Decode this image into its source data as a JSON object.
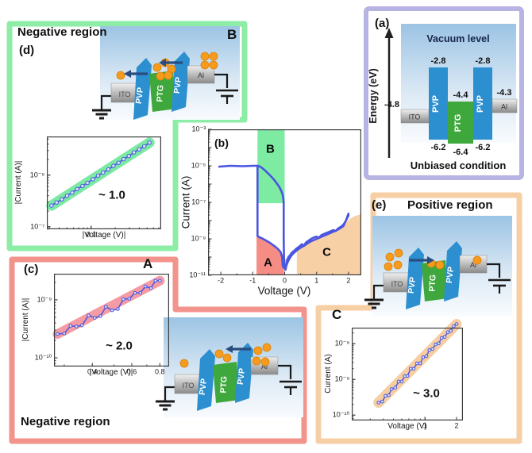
{
  "figure": {
    "layers": [
      "ITO",
      "PVP",
      "PTG",
      "PVP",
      "Al"
    ],
    "panels": {
      "a": {
        "label": "(a)",
        "vacuum_label": "Vacuum level",
        "energy_axis": "Energy (eV)",
        "caption": "Unbiased condition",
        "levels": {
          "pvp_top": "-2.8",
          "ptg_top": "-4.4",
          "ito": "-4.8",
          "al": "-4.3",
          "pvp_bottom": "-6.2",
          "ptg_bottom": "-6.4"
        }
      },
      "b": {
        "label": "(b)"
      },
      "c": {
        "label": "(c)",
        "region_ref": "A",
        "caption": "Negative region"
      },
      "d": {
        "label": "(d)",
        "region_ref": "B",
        "caption": "Negative region"
      },
      "e": {
        "label": "(e)",
        "region_ref": "C",
        "caption": "Positive region"
      }
    }
  },
  "colors": {
    "border_green": "#8deca6",
    "border_red": "#f2938c",
    "border_peach": "#f7cfa5",
    "border_lavender": "#b7b3e2",
    "curve_blue": "#4a55e0",
    "region_A_red": "#f58d85",
    "region_B_green": "#7deba2",
    "region_C_peach": "#f8d0a5",
    "pvp_blue": "#2b8fd0",
    "ptg_green": "#3ea83c",
    "electron_orange": "#f69b1d",
    "arrow_navy": "#2a4d80"
  },
  "chart_data": [
    {
      "id": "b",
      "type": "line",
      "title": "",
      "xlabel": "Voltage (V)",
      "ylabel": "Current (A)",
      "xscale": "linear",
      "xlim": [
        -2.4,
        2.4
      ],
      "ylim": [
        -11,
        -3
      ],
      "xticks": [
        {
          "v": -2,
          "label": "-2"
        },
        {
          "v": -1,
          "label": "-1"
        },
        {
          "v": 0,
          "label": "0"
        },
        {
          "v": 1,
          "label": "1"
        },
        {
          "v": 2,
          "label": "2"
        }
      ],
      "xminor": [
        -1.5,
        -0.5,
        0.5,
        1.5
      ],
      "yticks": [
        {
          "e": -3,
          "label": "10⁻³"
        },
        {
          "e": -5,
          "label": "10⁻⁵"
        },
        {
          "e": -7,
          "label": "10⁻⁷"
        },
        {
          "e": -9,
          "label": "10⁻⁹"
        },
        {
          "e": -11,
          "label": "10⁻¹¹"
        }
      ],
      "line_color": "#4a55e0",
      "regions": [
        {
          "name": "B",
          "color": "#7deba2",
          "points": [
            [
              -0.85,
              -3
            ],
            [
              0,
              -3
            ],
            [
              0,
              -7.05
            ],
            [
              -0.85,
              -7.05
            ]
          ]
        },
        {
          "name": "A",
          "color": "#f58d85",
          "points": [
            [
              -0.88,
              -11
            ],
            [
              -0.88,
              -8.8
            ],
            [
              -0.7,
              -8.95
            ],
            [
              -0.5,
              -9.15
            ],
            [
              -0.3,
              -9.4
            ],
            [
              -0.15,
              -9.65
            ],
            [
              -0.02,
              -9.95
            ],
            [
              -0.02,
              -11
            ]
          ]
        },
        {
          "name": "C",
          "color": "#f8d0a5",
          "points": [
            [
              0.38,
              -11
            ],
            [
              0.38,
              -9.7
            ],
            [
              0.55,
              -9.4
            ],
            [
              0.75,
              -9.15
            ],
            [
              0.95,
              -8.95
            ],
            [
              1.2,
              -8.8
            ],
            [
              1.45,
              -8.6
            ],
            [
              1.7,
              -8.45
            ],
            [
              1.9,
              -8.15
            ],
            [
              2.05,
              -7.9
            ],
            [
              2.2,
              -7.75
            ],
            [
              2.4,
              -7.65
            ],
            [
              2.4,
              -11
            ]
          ]
        }
      ],
      "region_labels": [
        {
          "text": "B",
          "v": -0.45,
          "e": -4.1
        },
        {
          "text": "A",
          "v": -0.52,
          "e": -10.3
        },
        {
          "text": "C",
          "v": 1.32,
          "e": -9.75
        }
      ],
      "series": [
        {
          "name": "negative-high-state",
          "width": 2.6,
          "points": [
            [
              -2.05,
              -5.05
            ],
            [
              -1.7,
              -5.0
            ],
            [
              -1.3,
              -5.02
            ],
            [
              -1.0,
              -5.0
            ],
            [
              -0.82,
              -5.0
            ],
            [
              -0.72,
              -5.1
            ],
            [
              -0.6,
              -5.28
            ],
            [
              -0.47,
              -5.5
            ],
            [
              -0.35,
              -5.72
            ],
            [
              -0.25,
              -5.95
            ],
            [
              -0.17,
              -6.15
            ],
            [
              -0.1,
              -6.4
            ],
            [
              -0.06,
              -6.6
            ],
            [
              -0.04,
              -6.85
            ],
            [
              -0.03,
              -7.0
            ],
            [
              -0.03,
              -9.0
            ],
            [
              -0.02,
              -10.2
            ],
            [
              -0.01,
              -10.45
            ]
          ]
        },
        {
          "name": "negative-low-state",
          "width": 2.6,
          "points": [
            [
              -0.85,
              -5.0
            ],
            [
              -0.85,
              -7.0
            ],
            [
              -0.85,
              -8.85
            ],
            [
              -0.78,
              -8.92
            ],
            [
              -0.68,
              -9.0
            ],
            [
              -0.58,
              -9.1
            ],
            [
              -0.48,
              -9.2
            ],
            [
              -0.38,
              -9.32
            ],
            [
              -0.28,
              -9.45
            ],
            [
              -0.2,
              -9.58
            ],
            [
              -0.13,
              -9.72
            ],
            [
              -0.08,
              -10.0
            ],
            [
              -0.06,
              -10.5
            ],
            [
              -0.04,
              -10.25
            ],
            [
              -0.03,
              -10.6
            ],
            [
              -0.01,
              -10.15
            ]
          ]
        },
        {
          "name": "positive-up",
          "width": 2.6,
          "points": [
            [
              0.02,
              -10.7
            ],
            [
              0.05,
              -10.4
            ],
            [
              0.08,
              -10.15
            ],
            [
              0.12,
              -10.0
            ],
            [
              0.17,
              -9.9
            ],
            [
              0.23,
              -9.75
            ],
            [
              0.3,
              -9.65
            ],
            [
              0.38,
              -9.52
            ],
            [
              0.46,
              -9.42
            ],
            [
              0.54,
              -9.3
            ],
            [
              0.6,
              -9.38
            ],
            [
              0.67,
              -9.2
            ],
            [
              0.75,
              -9.1
            ],
            [
              0.83,
              -9.0
            ],
            [
              0.92,
              -8.92
            ],
            [
              1.0,
              -8.88
            ],
            [
              1.07,
              -8.95
            ],
            [
              1.15,
              -8.8
            ],
            [
              1.25,
              -8.72
            ],
            [
              1.35,
              -8.65
            ],
            [
              1.45,
              -8.58
            ],
            [
              1.52,
              -8.52
            ],
            [
              1.6,
              -8.58
            ],
            [
              1.68,
              -8.42
            ],
            [
              1.78,
              -8.32
            ],
            [
              1.85,
              -8.2
            ],
            [
              1.92,
              -8.0
            ],
            [
              1.96,
              -7.8
            ],
            [
              2.0,
              -7.62
            ]
          ]
        },
        {
          "name": "positive-return",
          "width": 2.6,
          "points": [
            [
              2.0,
              -7.72
            ],
            [
              1.92,
              -8.0
            ],
            [
              1.84,
              -8.3
            ],
            [
              1.74,
              -8.42
            ],
            [
              1.64,
              -8.52
            ],
            [
              1.54,
              -8.6
            ],
            [
              1.44,
              -8.68
            ],
            [
              1.34,
              -8.75
            ],
            [
              1.24,
              -8.82
            ],
            [
              1.14,
              -8.9
            ],
            [
              1.04,
              -8.98
            ],
            [
              0.94,
              -9.05
            ],
            [
              0.84,
              -9.12
            ],
            [
              0.74,
              -9.22
            ],
            [
              0.64,
              -9.35
            ],
            [
              0.54,
              -9.45
            ],
            [
              0.44,
              -9.55
            ],
            [
              0.35,
              -9.68
            ],
            [
              0.27,
              -9.8
            ],
            [
              0.2,
              -9.95
            ],
            [
              0.14,
              -10.12
            ],
            [
              0.09,
              -10.3
            ],
            [
              0.05,
              -10.5
            ],
            [
              0.03,
              -10.68
            ]
          ]
        }
      ]
    },
    {
      "id": "d",
      "type": "line",
      "xlabel": "|Voltage (V)|",
      "ylabel": "|Current (A)|",
      "xscale": "log",
      "xlim": [
        0.028,
        0.75
      ],
      "ylim": [
        -7.05,
        -5.25
      ],
      "xticks": [
        {
          "v": 0.1,
          "label": "0.1"
        }
      ],
      "yticks": [
        {
          "e": -6,
          "label": "10⁻⁶"
        },
        {
          "e": -7,
          "label": "10⁻⁷"
        }
      ],
      "slope_text": "~ 1.0",
      "line_color": "#4a55e0",
      "band": {
        "color": "#7be9a3",
        "width": 13
      },
      "markers": true,
      "marker_r": 2.2,
      "series": [
        {
          "name": "slope-1",
          "width": 1.6,
          "points": [
            [
              0.032,
              -6.59
            ],
            [
              0.037,
              -6.53
            ],
            [
              0.043,
              -6.47
            ],
            [
              0.05,
              -6.4
            ],
            [
              0.058,
              -6.34
            ],
            [
              0.067,
              -6.27
            ],
            [
              0.078,
              -6.21
            ],
            [
              0.09,
              -6.15
            ],
            [
              0.105,
              -6.08
            ],
            [
              0.122,
              -6.01
            ],
            [
              0.141,
              -5.95
            ],
            [
              0.164,
              -5.89
            ],
            [
              0.19,
              -5.82
            ],
            [
              0.22,
              -5.76
            ],
            [
              0.255,
              -5.69
            ],
            [
              0.296,
              -5.63
            ],
            [
              0.343,
              -5.56
            ],
            [
              0.398,
              -5.5
            ],
            [
              0.461,
              -5.44
            ],
            [
              0.535,
              -5.37
            ]
          ]
        }
      ]
    },
    {
      "id": "c",
      "type": "line",
      "xlabel": "|Voltage (V)|",
      "ylabel": "|Current (A)|",
      "xscale": "log",
      "xlim": [
        0.27,
        0.88
      ],
      "ylim": [
        -10.15,
        -8.55
      ],
      "xticks": [
        {
          "v": 0.4,
          "label": "0.4"
        },
        {
          "v": 0.6,
          "label": "0.6"
        },
        {
          "v": 0.8,
          "label": "0.8"
        }
      ],
      "yticks": [
        {
          "e": -9,
          "label": "10⁻⁹"
        },
        {
          "e": -10,
          "label": "10⁻¹⁰"
        }
      ],
      "slope_text": "~ 2.0",
      "line_color": "#4a55e0",
      "band": {
        "color": "#f59ba3",
        "width": 12
      },
      "markers": true,
      "marker_r": 1.8,
      "series": [
        {
          "name": "slope-2",
          "width": 1.5,
          "points": [
            [
              0.28,
              -9.59
            ],
            [
              0.3,
              -9.58
            ],
            [
              0.32,
              -9.45
            ],
            [
              0.34,
              -9.46
            ],
            [
              0.36,
              -9.44
            ],
            [
              0.385,
              -9.27
            ],
            [
              0.41,
              -9.31
            ],
            [
              0.435,
              -9.28
            ],
            [
              0.46,
              -9.12
            ],
            [
              0.49,
              -9.18
            ],
            [
              0.52,
              -9.16
            ],
            [
              0.55,
              -8.99
            ],
            [
              0.585,
              -8.98
            ],
            [
              0.62,
              -8.88
            ],
            [
              0.655,
              -8.88
            ],
            [
              0.69,
              -8.77
            ],
            [
              0.73,
              -8.8
            ],
            [
              0.765,
              -8.67
            ],
            [
              0.8,
              -8.67
            ]
          ]
        }
      ]
    },
    {
      "id": "e",
      "type": "line",
      "xlabel": "Voltage (V)",
      "ylabel": "Current (A)",
      "xscale": "log",
      "xlim": [
        0.2,
        2.3
      ],
      "ylim": [
        -10.15,
        -7.55
      ],
      "xticks": [
        {
          "v": 1,
          "label": "1"
        },
        {
          "v": 2,
          "label": "2"
        }
      ],
      "yticks": [
        {
          "e": -8,
          "label": "10⁻⁸"
        },
        {
          "e": -9,
          "label": "10⁻⁹"
        },
        {
          "e": -10,
          "label": "10⁻¹⁰"
        }
      ],
      "slope_text": "~ 3.0",
      "line_color": "#4a55e0",
      "band": {
        "color": "#f7cda2",
        "width": 13
      },
      "markers": true,
      "marker_r": 1.8,
      "series": [
        {
          "name": "slope-3",
          "width": 1.4,
          "points": [
            [
              0.36,
              -9.65
            ],
            [
              0.39,
              -9.62
            ],
            [
              0.42,
              -9.46
            ],
            [
              0.45,
              -9.44
            ],
            [
              0.48,
              -9.27
            ],
            [
              0.52,
              -9.23
            ],
            [
              0.56,
              -9.06
            ],
            [
              0.6,
              -9.06
            ],
            [
              0.64,
              -8.91
            ],
            [
              0.68,
              -8.9
            ],
            [
              0.73,
              -8.7
            ],
            [
              0.78,
              -8.7
            ],
            [
              0.84,
              -8.55
            ],
            [
              0.9,
              -8.55
            ],
            [
              0.96,
              -8.38
            ],
            [
              1.03,
              -8.35
            ],
            [
              1.1,
              -8.18
            ],
            [
              1.18,
              -8.15
            ],
            [
              1.26,
              -8.02
            ],
            [
              1.35,
              -7.99
            ],
            [
              1.44,
              -7.84
            ],
            [
              1.54,
              -7.81
            ],
            [
              1.65,
              -7.68
            ],
            [
              1.76,
              -7.64
            ],
            [
              1.88,
              -7.51
            ],
            [
              2.0,
              -7.45
            ]
          ]
        }
      ]
    }
  ]
}
